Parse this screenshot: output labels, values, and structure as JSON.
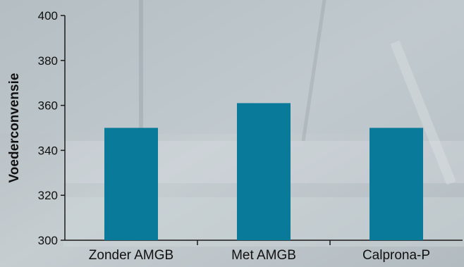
{
  "chart_data": {
    "type": "bar",
    "categories": [
      "Zonder AMGB",
      "Met AMGB",
      "Calprona-P"
    ],
    "values": [
      350,
      361,
      350
    ],
    "ylabel": "Voederconvensie",
    "xlabel": "",
    "ylim": [
      300,
      400
    ],
    "yticks": [
      300,
      320,
      340,
      360,
      380,
      400
    ],
    "grid": false,
    "bar_color": "#0a7a9a",
    "axis_color": "#1a1a1a"
  }
}
